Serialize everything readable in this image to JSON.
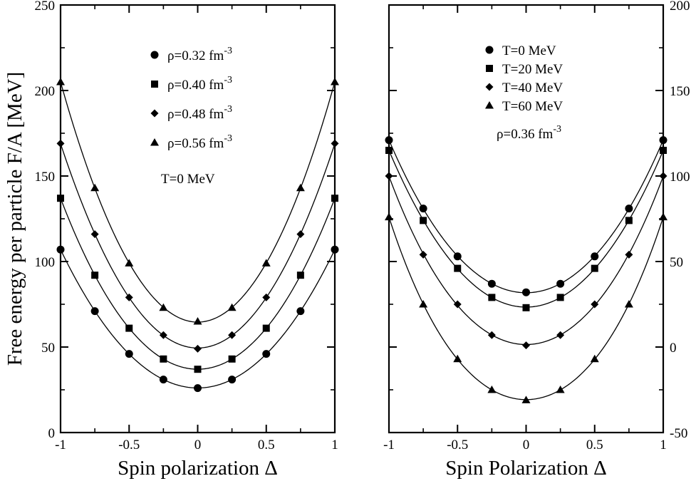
{
  "chart_data": [
    {
      "type": "scatter",
      "xlabel": "Spin polarization Δ",
      "ylabel": "Free energy per particle F/A [MeV]",
      "xlim": [
        -1,
        1
      ],
      "ylim": [
        0,
        250
      ],
      "x_ticks": [
        -1,
        -0.5,
        0,
        0.5,
        1
      ],
      "x_tick_labels": [
        "-1",
        "-0.5",
        "0",
        "0.5",
        "1"
      ],
      "y_ticks": [
        0,
        50,
        100,
        150,
        200,
        250
      ],
      "y_tick_labels": [
        "0",
        "50",
        "100",
        "150",
        "200",
        "250"
      ],
      "y_axis_side": "left",
      "grid": false,
      "legend_position": "top-center",
      "annotation": "T=0 MeV",
      "fit_curves": true,
      "series": [
        {
          "name": "ρ=0.32 fm",
          "name_sup": "-3",
          "marker": "circle",
          "x": [
            -1,
            -0.75,
            -0.5,
            -0.25,
            0,
            0.25,
            0.5,
            0.75,
            1
          ],
          "y": [
            107,
            71,
            46,
            31,
            26,
            31,
            46,
            71,
            107
          ]
        },
        {
          "name": "ρ=0.40 fm",
          "name_sup": "-3",
          "marker": "square",
          "x": [
            -1,
            -0.75,
            -0.5,
            -0.25,
            0,
            0.25,
            0.5,
            0.75,
            1
          ],
          "y": [
            137,
            92,
            61,
            43,
            37,
            43,
            61,
            92,
            137
          ]
        },
        {
          "name": "ρ=0.48 fm",
          "name_sup": "-3",
          "marker": "diamond",
          "x": [
            -1,
            -0.75,
            -0.5,
            -0.25,
            0,
            0.25,
            0.5,
            0.75,
            1
          ],
          "y": [
            169,
            116,
            79,
            57,
            49,
            57,
            79,
            116,
            169
          ]
        },
        {
          "name": "ρ=0.56 fm",
          "name_sup": "-3",
          "marker": "triangle",
          "x": [
            -1,
            -0.75,
            -0.5,
            -0.25,
            0,
            0.25,
            0.5,
            0.75,
            1
          ],
          "y": [
            205,
            143,
            99,
            73,
            65,
            73,
            99,
            143,
            205
          ]
        }
      ]
    },
    {
      "type": "scatter",
      "xlabel": "Spin Polarization Δ",
      "ylabel": "",
      "xlim": [
        -1,
        1
      ],
      "ylim": [
        -50,
        200
      ],
      "x_ticks": [
        -1,
        -0.5,
        0,
        0.5,
        1
      ],
      "x_tick_labels": [
        "-1",
        "-0.5",
        "0",
        "0.5",
        "1"
      ],
      "y_ticks": [
        -50,
        0,
        50,
        100,
        150,
        200
      ],
      "y_tick_labels": [
        "-50",
        "0",
        "50",
        "100",
        "150",
        "200"
      ],
      "y_axis_side": "right",
      "grid": false,
      "legend_position": "top-center",
      "annotation": "ρ=0.36 fm",
      "annotation_sup": "-3",
      "fit_curves": true,
      "series": [
        {
          "name": "T=0 MeV",
          "marker": "circle",
          "x": [
            -1,
            -0.75,
            -0.5,
            -0.25,
            0,
            0.25,
            0.5,
            0.75,
            1
          ],
          "y": [
            121,
            81,
            53,
            37,
            32,
            37,
            53,
            81,
            121
          ]
        },
        {
          "name": "T=20 MeV",
          "marker": "square",
          "x": [
            -1,
            -0.75,
            -0.5,
            -0.25,
            0,
            0.25,
            0.5,
            0.75,
            1
          ],
          "y": [
            115,
            74,
            46,
            29,
            23,
            29,
            46,
            74,
            115
          ]
        },
        {
          "name": "T=40 MeV",
          "marker": "diamond",
          "x": [
            -1,
            -0.75,
            -0.5,
            -0.25,
            0,
            0.25,
            0.5,
            0.75,
            1
          ],
          "y": [
            100,
            54,
            25,
            7,
            1,
            7,
            25,
            54,
            100
          ]
        },
        {
          "name": "T=60 MeV",
          "marker": "triangle",
          "x": [
            -1,
            -0.75,
            -0.5,
            -0.25,
            0,
            0.25,
            0.5,
            0.75,
            1
          ],
          "y": [
            76,
            25,
            -7,
            -25,
            -31,
            -25,
            -7,
            25,
            76
          ]
        }
      ]
    }
  ]
}
